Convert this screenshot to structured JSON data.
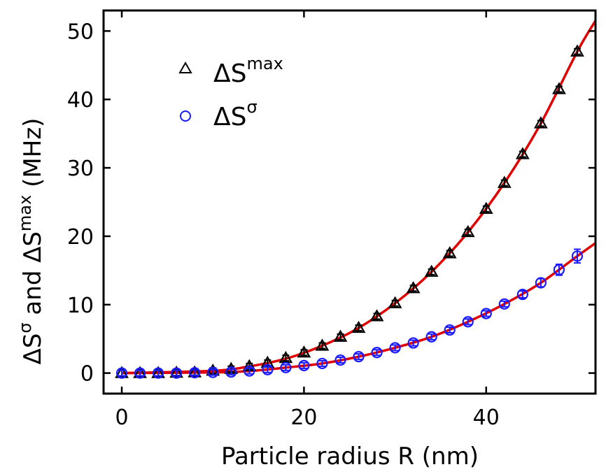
{
  "chart_data": {
    "type": "scatter",
    "xlabel": "Particle radius R (nm)",
    "ylabel": {
      "base1": "ΔS",
      "sup1": "σ",
      "mid": " and ",
      "base2": "ΔS",
      "sup2": "max",
      "unit": " (MHz)"
    },
    "xlim": [
      -2,
      52
    ],
    "ylim": [
      -3,
      53
    ],
    "xticks": [
      0,
      20,
      40
    ],
    "yticks": [
      0,
      10,
      20,
      30,
      40,
      50
    ],
    "xtick_labels": [
      "0",
      "20",
      "40"
    ],
    "ytick_labels": [
      "0",
      "10",
      "20",
      "30",
      "40",
      "50"
    ],
    "legend_position": "top-left",
    "grid": false,
    "series": [
      {
        "name_base": "ΔS",
        "name_sup": "max",
        "marker": "triangle",
        "color": "#000000",
        "x": [
          0,
          2,
          4,
          6,
          8,
          10,
          12,
          14,
          16,
          18,
          20,
          22,
          24,
          26,
          28,
          30,
          32,
          34,
          36,
          38,
          40,
          42,
          44,
          46,
          48,
          50
        ],
        "y": [
          0.0,
          0.0,
          0.0,
          0.05,
          0.1,
          0.35,
          0.6,
          1.0,
          1.5,
          2.2,
          3.0,
          4.0,
          5.3,
          6.6,
          8.3,
          10.2,
          12.4,
          14.8,
          17.5,
          20.6,
          24.0,
          27.8,
          32.0,
          36.5,
          41.5,
          47.0
        ],
        "err": [
          0.1,
          0.1,
          0.1,
          0.1,
          0.1,
          0.1,
          0.1,
          0.1,
          0.1,
          0.1,
          0.1,
          0.1,
          0.15,
          0.15,
          0.15,
          0.2,
          0.2,
          0.2,
          0.25,
          0.25,
          0.3,
          0.3,
          0.3,
          0.35,
          0.4,
          0.4
        ]
      },
      {
        "name_base": "ΔS",
        "name_sup": "σ",
        "marker": "circle",
        "color": "#1a1aff",
        "x": [
          0,
          2,
          4,
          6,
          8,
          10,
          12,
          14,
          16,
          18,
          20,
          22,
          24,
          26,
          28,
          30,
          32,
          34,
          36,
          38,
          40,
          42,
          44,
          46,
          48,
          50
        ],
        "y": [
          0.0,
          0.0,
          0.0,
          0.0,
          0.05,
          0.1,
          0.15,
          0.3,
          0.5,
          0.8,
          1.1,
          1.4,
          1.9,
          2.4,
          3.0,
          3.7,
          4.4,
          5.3,
          6.3,
          7.5,
          8.7,
          10.1,
          11.5,
          13.2,
          15.1,
          17.1
        ],
        "err": [
          0.1,
          0.1,
          0.1,
          0.1,
          0.1,
          0.1,
          0.1,
          0.1,
          0.1,
          0.1,
          0.15,
          0.15,
          0.15,
          0.2,
          0.2,
          0.2,
          0.25,
          0.25,
          0.3,
          0.3,
          0.35,
          0.4,
          0.5,
          0.6,
          0.8,
          1.0
        ]
      }
    ],
    "fits": [
      {
        "x": [
          0,
          10,
          14,
          18,
          22,
          26,
          30,
          34,
          38,
          42,
          46,
          50,
          52
        ],
        "y": [
          0,
          0.33,
          0.98,
          2.1,
          4.0,
          6.6,
          10.2,
          14.8,
          20.6,
          27.8,
          36.5,
          47.0,
          51.5
        ],
        "color": "#e00000"
      },
      {
        "x": [
          0,
          10,
          14,
          18,
          22,
          26,
          30,
          34,
          38,
          42,
          46,
          50,
          52
        ],
        "y": [
          0,
          0.1,
          0.3,
          0.8,
          1.4,
          2.4,
          3.7,
          5.3,
          7.5,
          10.1,
          13.2,
          17.1,
          19.0
        ],
        "color": "#e00000"
      }
    ]
  }
}
